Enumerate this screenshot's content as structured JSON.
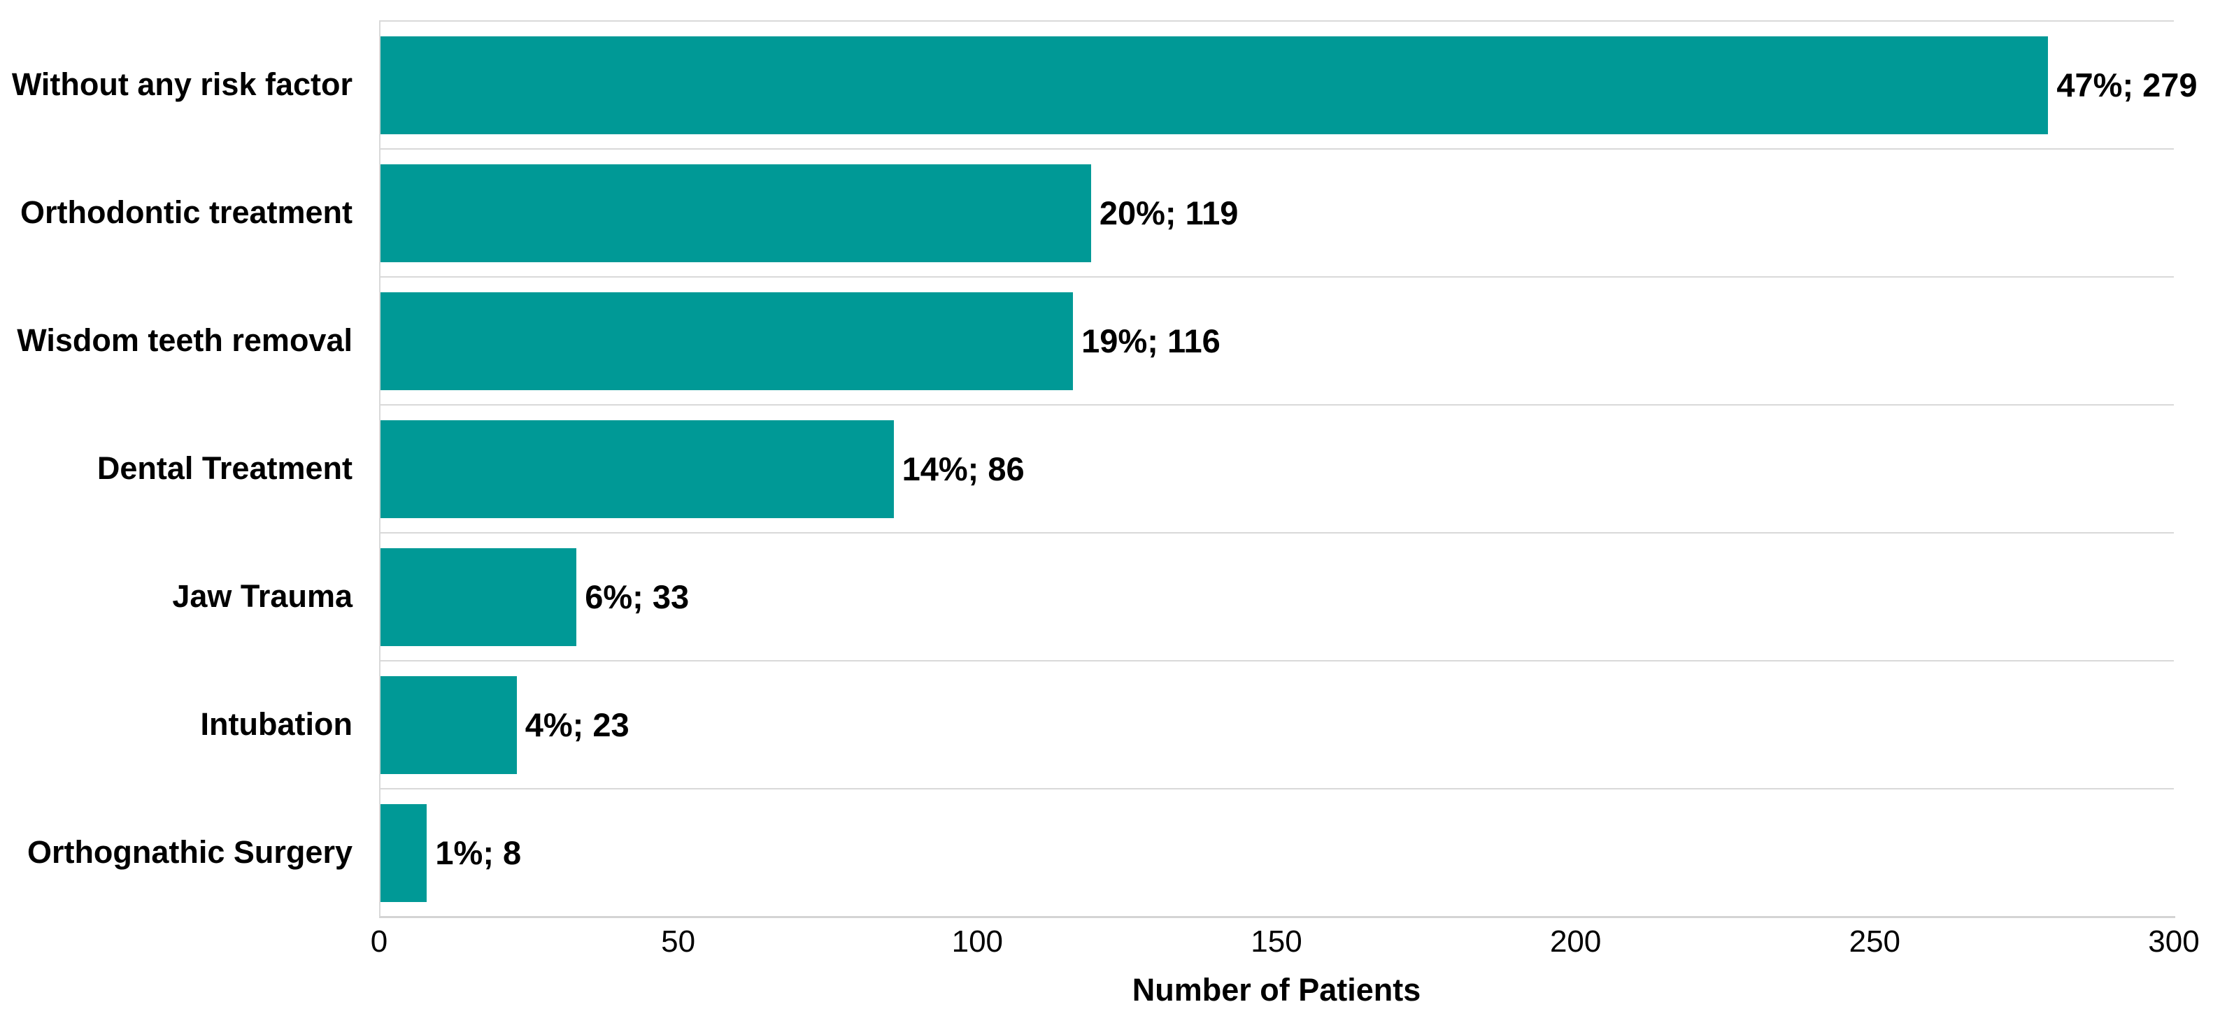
{
  "chart_data": {
    "type": "bar",
    "orientation": "horizontal",
    "title": "",
    "xlabel": "Number of Patients",
    "ylabel": "",
    "xlim": [
      0,
      300
    ],
    "xticks": [
      "0",
      "50",
      "100",
      "150",
      "200",
      "250",
      "300"
    ],
    "grid": "horizontal category separator lines, light gray; no vertical gridlines",
    "legend_position": "none",
    "categories": [
      "Without any risk factor",
      "Orthodontic treatment",
      "Wisdom teeth removal",
      "Dental Treatment",
      "Jaw Trauma",
      "Intubation",
      "Orthognathic Surgery"
    ],
    "values": [
      279,
      119,
      116,
      86,
      33,
      23,
      8
    ],
    "percentages": [
      47,
      20,
      19,
      14,
      6,
      4,
      1
    ],
    "bar_labels": [
      "47%; 279",
      "20%; 119",
      "19%; 116",
      "14%; 86",
      "6%; 33",
      "4%; 23",
      "1%; 8"
    ],
    "colors": {
      "bar": "#009996",
      "gridline": "#d9d9d9",
      "axis_line": "#d4d4d4",
      "text": "#000000"
    }
  }
}
